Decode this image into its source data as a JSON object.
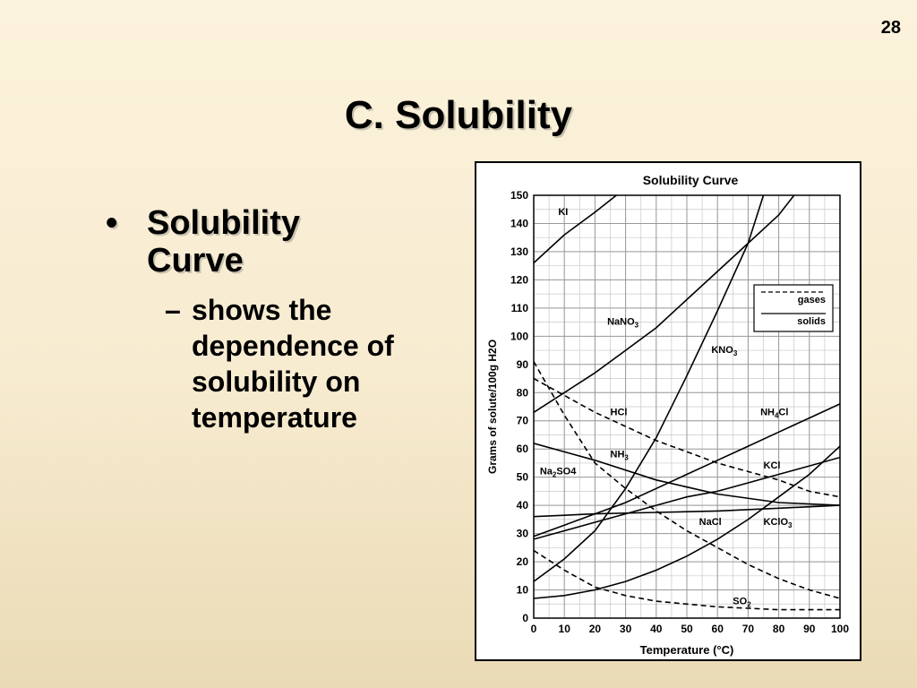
{
  "slide": {
    "number": "28",
    "title": "C. Solubility",
    "bullet": "Solubility Curve",
    "sub_bullet": "shows the dependence of solubility on temperature"
  },
  "chart_data": {
    "type": "line",
    "title": "Solubility Curve",
    "xlabel": "Temperature (°C)",
    "ylabel": "Grams of solute/100g H2O",
    "xlim": [
      0,
      100
    ],
    "ylim": [
      0,
      150
    ],
    "x_ticks": [
      0,
      10,
      20,
      30,
      40,
      50,
      60,
      70,
      80,
      90,
      100
    ],
    "y_ticks": [
      0,
      10,
      20,
      30,
      40,
      50,
      60,
      70,
      80,
      90,
      100,
      110,
      120,
      130,
      140,
      150
    ],
    "grid": true,
    "legend": {
      "position": "right",
      "entries": [
        {
          "label": "gases",
          "style": "dashed"
        },
        {
          "label": "solids",
          "style": "solid"
        }
      ]
    },
    "series": [
      {
        "name": "KI",
        "style": "solid",
        "points": [
          [
            0,
            126
          ],
          [
            10,
            136
          ],
          [
            20,
            144
          ],
          [
            27,
            150
          ]
        ]
      },
      {
        "name": "NaNO3",
        "style": "solid",
        "points": [
          [
            0,
            73
          ],
          [
            10,
            80
          ],
          [
            20,
            87
          ],
          [
            30,
            95
          ],
          [
            40,
            103
          ],
          [
            50,
            113
          ],
          [
            60,
            123
          ],
          [
            70,
            133
          ],
          [
            80,
            143
          ],
          [
            85,
            150
          ]
        ]
      },
      {
        "name": "KNO3",
        "style": "solid",
        "points": [
          [
            0,
            13
          ],
          [
            10,
            21
          ],
          [
            20,
            31
          ],
          [
            30,
            46
          ],
          [
            40,
            64
          ],
          [
            50,
            86
          ],
          [
            60,
            109
          ],
          [
            70,
            133
          ],
          [
            75,
            150
          ]
        ]
      },
      {
        "name": "NH4Cl",
        "style": "solid",
        "points": [
          [
            0,
            29
          ],
          [
            10,
            33
          ],
          [
            20,
            37
          ],
          [
            30,
            41
          ],
          [
            40,
            46
          ],
          [
            50,
            51
          ],
          [
            60,
            56
          ],
          [
            70,
            61
          ],
          [
            80,
            66
          ],
          [
            90,
            71
          ],
          [
            100,
            76
          ]
        ]
      },
      {
        "name": "KCl",
        "style": "solid",
        "points": [
          [
            0,
            28
          ],
          [
            10,
            31
          ],
          [
            20,
            34
          ],
          [
            30,
            37
          ],
          [
            40,
            40
          ],
          [
            50,
            43
          ],
          [
            60,
            45
          ],
          [
            70,
            48
          ],
          [
            80,
            51
          ],
          [
            90,
            54
          ],
          [
            100,
            57
          ]
        ]
      },
      {
        "name": "Na2SO4",
        "style": "solid",
        "points": [
          [
            0,
            62
          ],
          [
            20,
            56
          ],
          [
            40,
            49
          ],
          [
            60,
            44
          ],
          [
            80,
            41
          ],
          [
            100,
            40
          ]
        ]
      },
      {
        "name": "NaCl",
        "style": "solid",
        "points": [
          [
            0,
            36
          ],
          [
            20,
            37
          ],
          [
            40,
            37.5
          ],
          [
            60,
            38
          ],
          [
            80,
            39
          ],
          [
            100,
            40
          ]
        ]
      },
      {
        "name": "KClO3",
        "style": "solid",
        "points": [
          [
            0,
            7
          ],
          [
            10,
            8
          ],
          [
            20,
            10
          ],
          [
            30,
            13
          ],
          [
            40,
            17
          ],
          [
            50,
            22
          ],
          [
            60,
            28
          ],
          [
            70,
            35
          ],
          [
            80,
            43
          ],
          [
            90,
            51
          ],
          [
            100,
            61
          ]
        ]
      },
      {
        "name": "HCl",
        "style": "dashed",
        "points": [
          [
            0,
            85
          ],
          [
            10,
            79
          ],
          [
            20,
            73
          ],
          [
            30,
            68
          ],
          [
            40,
            63
          ],
          [
            50,
            59
          ],
          [
            60,
            55
          ],
          [
            70,
            52
          ],
          [
            80,
            49
          ],
          [
            90,
            45
          ],
          [
            100,
            43
          ]
        ]
      },
      {
        "name": "NH3",
        "style": "dashed",
        "points": [
          [
            0,
            91
          ],
          [
            10,
            72
          ],
          [
            20,
            55
          ],
          [
            30,
            46
          ],
          [
            40,
            38
          ],
          [
            50,
            31
          ],
          [
            60,
            25
          ],
          [
            70,
            19
          ],
          [
            80,
            14
          ],
          [
            90,
            10
          ],
          [
            100,
            7
          ]
        ]
      },
      {
        "name": "SO2",
        "style": "dashed",
        "points": [
          [
            0,
            24
          ],
          [
            10,
            17
          ],
          [
            20,
            11
          ],
          [
            30,
            8
          ],
          [
            40,
            6
          ],
          [
            50,
            5
          ],
          [
            60,
            4
          ],
          [
            70,
            3.5
          ],
          [
            80,
            3
          ],
          [
            90,
            3
          ],
          [
            100,
            3
          ]
        ]
      }
    ],
    "curve_labels": [
      {
        "series": "KI",
        "text": "KI",
        "sub": "",
        "after": ""
      },
      {
        "series": "NaNO3",
        "text": "NaNO",
        "sub": "3",
        "after": ""
      },
      {
        "series": "KNO3",
        "text": "KNO",
        "sub": "3",
        "after": ""
      },
      {
        "series": "HCl",
        "text": "HCl",
        "sub": "",
        "after": ""
      },
      {
        "series": "NH4Cl",
        "text": "NH",
        "sub": "4",
        "after": "Cl"
      },
      {
        "series": "NH3",
        "text": "NH",
        "sub": "3",
        "after": ""
      },
      {
        "series": "Na2SO4",
        "text": "Na",
        "sub": "2",
        "after": "SO4"
      },
      {
        "series": "KCl",
        "text": "KCl",
        "sub": "",
        "after": ""
      },
      {
        "series": "NaCl",
        "text": "NaCl",
        "sub": "",
        "after": ""
      },
      {
        "series": "KClO3",
        "text": "KClO",
        "sub": "3",
        "after": ""
      },
      {
        "series": "SO2",
        "text": "SO",
        "sub": "2",
        "after": ""
      }
    ]
  }
}
